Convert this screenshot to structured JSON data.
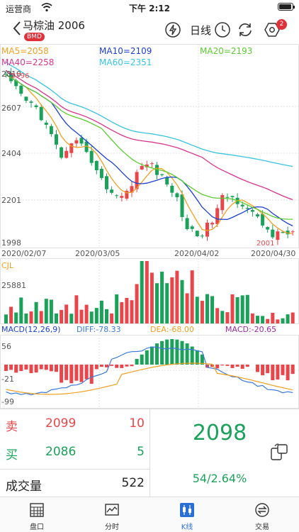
{
  "status_bar": {
    "carrier": "运营商",
    "time": "下午 2:12"
  },
  "header": {
    "title": "马棕油 2006",
    "exchange_badge": "BMD",
    "period": "日线",
    "notification_count": "2"
  },
  "chart_labels": {
    "ma5": "MA5=2058",
    "ma10": "MA10=2109",
    "ma20": "MA20=2193",
    "ma40": "MA40=2258",
    "ma60": "MA60=2351",
    "y_ticks": [
      "2810",
      "2607",
      "2404",
      "2201",
      "1998"
    ],
    "x_ticks": [
      "2020/02/07",
      "2020/03/05",
      "2020/04/02",
      "2020/04/30"
    ],
    "high_marker": "2796",
    "low_marker": "2001",
    "volume_label": "CJL",
    "volume_tick": "25881",
    "macd_params": "MACD(12,26,9)",
    "diff": "DIFF:-78.33",
    "dea": "DEA:-68.00",
    "macd": "MACD:-20.65",
    "macd_ticks": [
      "56",
      "-21",
      "-99"
    ]
  },
  "colors": {
    "up": "#e8464a",
    "down": "#1aa25a",
    "ma5": "#f0a020",
    "ma10": "#1d3fd0",
    "ma20": "#5ccc30",
    "ma40": "#d8348c",
    "ma60": "#38c4e0",
    "dea": "#f0a020",
    "diff": "#3b7ad8",
    "macd": "#9a2aa0"
  },
  "quote": {
    "sell_label": "卖",
    "sell_price": "2099",
    "sell_volume": "10",
    "buy_label": "买",
    "buy_price": "2086",
    "buy_volume": "5",
    "volume_label": "成交量",
    "volume_value": "522",
    "last_price": "2098",
    "change": "54/2.64%"
  },
  "tabs": [
    {
      "label": "盘口",
      "icon": "grid-icon"
    },
    {
      "label": "分时",
      "icon": "intraday-chart-icon"
    },
    {
      "label": "K线",
      "icon": "candlestick-icon"
    },
    {
      "label": "交易",
      "icon": "trade-icon"
    }
  ]
}
